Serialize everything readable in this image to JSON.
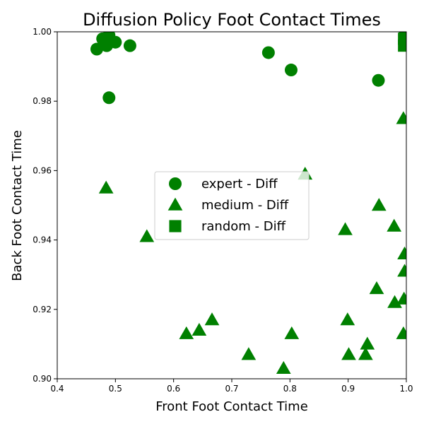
{
  "chart_data": {
    "type": "scatter",
    "title": "Diffusion Policy Foot Contact Times",
    "xlabel": "Front Foot Contact Time",
    "ylabel": "Back Foot Contact Time",
    "xlim": [
      0.4,
      1.0
    ],
    "ylim": [
      0.9,
      1.0
    ],
    "xticks": [
      "0.4",
      "0.5",
      "0.6",
      "0.7",
      "0.8",
      "0.9",
      "1.0"
    ],
    "yticks": [
      "0.90",
      "0.92",
      "0.94",
      "0.96",
      "0.98",
      "1.00"
    ],
    "grid": false,
    "legend_placement": "center",
    "color": "#008000",
    "series": [
      {
        "name": "expert - Diff",
        "marker": "circle",
        "points": [
          [
            0.468,
            0.995
          ],
          [
            0.478,
            0.998
          ],
          [
            0.485,
            0.996
          ],
          [
            0.489,
            0.999
          ],
          [
            0.5,
            0.997
          ],
          [
            0.525,
            0.996
          ],
          [
            0.489,
            0.981
          ],
          [
            0.763,
            0.994
          ],
          [
            0.802,
            0.989
          ],
          [
            0.952,
            0.986
          ],
          [
            0.997,
            0.999
          ]
        ]
      },
      {
        "name": "medium - Diff",
        "marker": "triangle",
        "points": [
          [
            0.484,
            0.955
          ],
          [
            0.554,
            0.941
          ],
          [
            0.622,
            0.913
          ],
          [
            0.644,
            0.914
          ],
          [
            0.666,
            0.917
          ],
          [
            0.729,
            0.907
          ],
          [
            0.789,
            0.903
          ],
          [
            0.803,
            0.913
          ],
          [
            0.826,
            0.959
          ],
          [
            0.895,
            0.943
          ],
          [
            0.899,
            0.917
          ],
          [
            0.901,
            0.907
          ],
          [
            0.93,
            0.907
          ],
          [
            0.933,
            0.91
          ],
          [
            0.949,
            0.926
          ],
          [
            0.953,
            0.95
          ],
          [
            0.979,
            0.944
          ],
          [
            0.98,
            0.922
          ],
          [
            0.995,
            0.975
          ],
          [
            0.997,
            0.936
          ],
          [
            0.997,
            0.931
          ],
          [
            0.996,
            0.923
          ],
          [
            0.995,
            0.913
          ]
        ]
      },
      {
        "name": "random - Diff",
        "marker": "square",
        "points": [
          [
            0.996,
            0.998
          ],
          [
            0.996,
            0.996
          ]
        ]
      }
    ]
  }
}
